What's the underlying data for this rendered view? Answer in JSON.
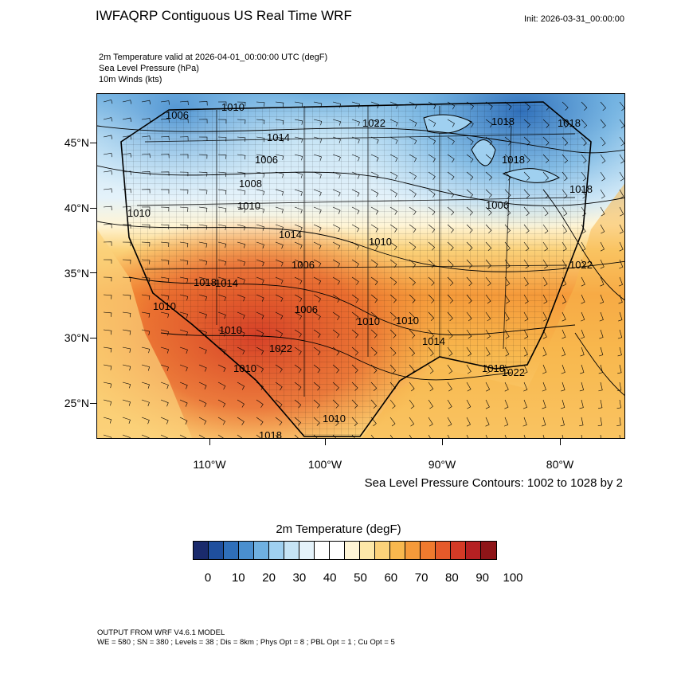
{
  "header": {
    "title": "IWFAQRP Contiguous US Real Time WRF",
    "init": "Init: 2026-03-31_00:00:00"
  },
  "fields": {
    "line1": "2m Temperature valid at 2026-04-01_00:00:00 UTC   (degF)",
    "line2": "Sea Level Pressure   (hPa)",
    "line3": "10m Winds   (kts)"
  },
  "axes": {
    "lat_labels": [
      "45°N",
      "40°N",
      "35°N",
      "30°N",
      "25°N"
    ],
    "lon_labels": [
      "110°W",
      "100°W",
      "90°W",
      "80°W"
    ]
  },
  "contour_note": "Sea Level Pressure Contours: 1002 to 1028 by 2",
  "isobar_labels": [
    "1010",
    "1006",
    "1022",
    "1018",
    "1018",
    "1014",
    "1018",
    "1006",
    "1008",
    "1010",
    "1010",
    "1014",
    "1010",
    "1006",
    "1022",
    "1018",
    "1014",
    "1010",
    "1006",
    "1010",
    "1010",
    "1014",
    "1018",
    "1022",
    "1010",
    "1018",
    "1010",
    "1006",
    "1010",
    "1018",
    "1022"
  ],
  "colorbar": {
    "title": "2m Temperature  (degF)",
    "colors": [
      "#1a2a6c",
      "#1f4f9e",
      "#2f6fba",
      "#4a8fcf",
      "#6fb0e0",
      "#9fd0f0",
      "#c6e4f5",
      "#e4f2fa",
      "#ffffff",
      "#ffffff",
      "#fff5d6",
      "#fde8a8",
      "#fbd27a",
      "#f8b84e",
      "#f59a3a",
      "#ef7a2e",
      "#e55a2a",
      "#d43a26",
      "#b52022",
      "#8e1518"
    ],
    "labels": [
      "0",
      "10",
      "20",
      "30",
      "40",
      "50",
      "60",
      "70",
      "80",
      "90",
      "100"
    ]
  },
  "footer": {
    "line1": "OUTPUT FROM WRF V4.6.1 MODEL",
    "line2": "WE = 580 ; SN = 380 ; Levels = 38 ; Dis = 8km ; Phys Opt = 8 ; PBL Opt = 1 ; Cu Opt = 5"
  }
}
